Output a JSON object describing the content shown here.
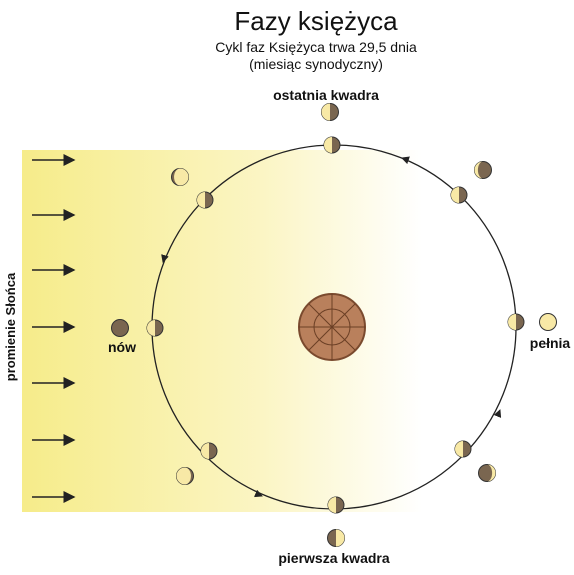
{
  "header": {
    "title": "Fazy księżyca",
    "subtitle_lines": [
      "Cykl faz Księżyca trwa 29,5 dnia",
      "(miesiąc synodyczny)"
    ]
  },
  "labels": {
    "top": "ostatnia kwadra",
    "left": "nów",
    "right": "pełnia",
    "bottom": "pierwsza kwadra",
    "sun_rays": "promienie Słońca"
  }
}
